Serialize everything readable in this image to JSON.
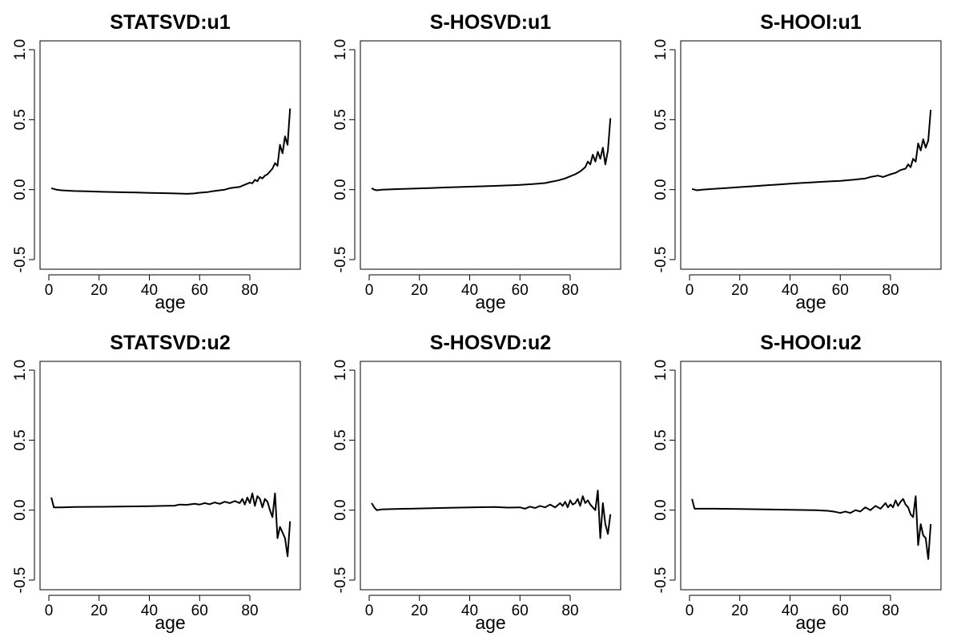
{
  "figure": {
    "background": "#ffffff",
    "line_color": "#000000"
  },
  "chart_data": [
    {
      "type": "line",
      "title": "STATSVD:u1",
      "xlabel": "age",
      "ylabel": "",
      "xlim": [
        0,
        96
      ],
      "ylim": [
        -0.5,
        1.0
      ],
      "xticks": [
        0,
        20,
        40,
        60,
        80
      ],
      "yticks": [
        -0.5,
        0.0,
        0.5,
        1.0
      ],
      "ytick_labels": [
        "-0.5",
        "0.0",
        "0.5",
        "1.0"
      ],
      "x": [
        1,
        3,
        5,
        10,
        15,
        20,
        25,
        30,
        35,
        40,
        45,
        50,
        55,
        58,
        60,
        63,
        65,
        68,
        70,
        72,
        74,
        76,
        78,
        80,
        81,
        82,
        83,
        84,
        85,
        86,
        87,
        88,
        89,
        90,
        91,
        92,
        93,
        94,
        95,
        96
      ],
      "y": [
        0.01,
        0.0,
        -0.005,
        -0.01,
        -0.012,
        -0.015,
        -0.017,
        -0.019,
        -0.021,
        -0.023,
        -0.025,
        -0.027,
        -0.03,
        -0.027,
        -0.022,
        -0.018,
        -0.012,
        -0.005,
        0.0,
        0.01,
        0.015,
        0.02,
        0.035,
        0.05,
        0.045,
        0.07,
        0.06,
        0.09,
        0.08,
        0.1,
        0.11,
        0.13,
        0.15,
        0.19,
        0.17,
        0.32,
        0.26,
        0.38,
        0.32,
        0.58
      ]
    },
    {
      "type": "line",
      "title": "S-HOSVD:u1",
      "xlabel": "age",
      "ylabel": "",
      "xlim": [
        0,
        96
      ],
      "ylim": [
        -0.5,
        1.0
      ],
      "xticks": [
        0,
        20,
        40,
        60,
        80
      ],
      "yticks": [
        -0.5,
        0.0,
        0.5,
        1.0
      ],
      "ytick_labels": [
        "-0.5",
        "0.0",
        "0.5",
        "1.0"
      ],
      "x": [
        1,
        2,
        3,
        5,
        10,
        15,
        20,
        25,
        30,
        35,
        40,
        45,
        50,
        55,
        60,
        65,
        70,
        72,
        75,
        78,
        80,
        82,
        84,
        86,
        87,
        88,
        89,
        90,
        91,
        92,
        93,
        94,
        95,
        96
      ],
      "y": [
        0.01,
        0.0,
        -0.005,
        0.0,
        0.003,
        0.006,
        0.009,
        0.012,
        0.015,
        0.018,
        0.021,
        0.024,
        0.027,
        0.03,
        0.034,
        0.04,
        0.047,
        0.055,
        0.065,
        0.08,
        0.095,
        0.11,
        0.13,
        0.16,
        0.2,
        0.18,
        0.25,
        0.2,
        0.27,
        0.22,
        0.3,
        0.18,
        0.28,
        0.51
      ]
    },
    {
      "type": "line",
      "title": "S-HOOI:u1",
      "xlabel": "age",
      "ylabel": "",
      "xlim": [
        0,
        96
      ],
      "ylim": [
        -0.5,
        1.0
      ],
      "xticks": [
        0,
        20,
        40,
        60,
        80
      ],
      "yticks": [
        -0.5,
        0.0,
        0.5,
        1.0
      ],
      "ytick_labels": [
        "-0.5",
        "0.0",
        "0.5",
        "1.0"
      ],
      "x": [
        1,
        2,
        3,
        5,
        10,
        15,
        20,
        25,
        30,
        35,
        40,
        45,
        50,
        55,
        60,
        65,
        70,
        72,
        75,
        77,
        80,
        82,
        84,
        86,
        87,
        88,
        89,
        90,
        91,
        92,
        93,
        94,
        95,
        96
      ],
      "y": [
        0.005,
        0.0,
        -0.005,
        0.0,
        0.006,
        0.012,
        0.018,
        0.024,
        0.03,
        0.036,
        0.042,
        0.048,
        0.053,
        0.058,
        0.063,
        0.07,
        0.08,
        0.09,
        0.1,
        0.09,
        0.11,
        0.12,
        0.14,
        0.15,
        0.18,
        0.16,
        0.22,
        0.2,
        0.33,
        0.28,
        0.36,
        0.3,
        0.35,
        0.57
      ]
    },
    {
      "type": "line",
      "title": "STATSVD:u2",
      "xlabel": "age",
      "ylabel": "",
      "xlim": [
        0,
        96
      ],
      "ylim": [
        -0.5,
        1.0
      ],
      "xticks": [
        0,
        20,
        40,
        60,
        80
      ],
      "yticks": [
        -0.5,
        0.0,
        0.5,
        1.0
      ],
      "ytick_labels": [
        "-0.5",
        "0.0",
        "0.5",
        "1.0"
      ],
      "x": [
        1,
        2,
        5,
        10,
        20,
        30,
        40,
        45,
        50,
        52,
        55,
        58,
        60,
        62,
        64,
        66,
        68,
        70,
        72,
        74,
        76,
        77,
        78,
        79,
        80,
        81,
        82,
        83,
        84,
        85,
        86,
        87,
        88,
        89,
        90,
        91,
        92,
        93,
        94,
        95,
        96
      ],
      "y": [
        0.09,
        0.02,
        0.02,
        0.022,
        0.024,
        0.026,
        0.028,
        0.03,
        0.032,
        0.04,
        0.038,
        0.045,
        0.04,
        0.05,
        0.042,
        0.055,
        0.045,
        0.06,
        0.05,
        0.065,
        0.05,
        0.08,
        0.04,
        0.09,
        0.05,
        0.12,
        0.03,
        0.1,
        0.08,
        0.02,
        0.08,
        0.06,
        0.0,
        -0.05,
        0.12,
        -0.2,
        -0.12,
        -0.16,
        -0.2,
        -0.33,
        -0.08
      ]
    },
    {
      "type": "line",
      "title": "S-HOSVD:u2",
      "xlabel": "age",
      "ylabel": "",
      "xlim": [
        0,
        96
      ],
      "ylim": [
        -0.5,
        1.0
      ],
      "xticks": [
        0,
        20,
        40,
        60,
        80
      ],
      "yticks": [
        -0.5,
        0.0,
        0.5,
        1.0
      ],
      "ytick_labels": [
        "-0.5",
        "0.0",
        "0.5",
        "1.0"
      ],
      "x": [
        1,
        2,
        3,
        5,
        10,
        20,
        30,
        40,
        50,
        55,
        60,
        62,
        64,
        66,
        68,
        70,
        72,
        74,
        76,
        77,
        78,
        79,
        80,
        81,
        82,
        83,
        84,
        85,
        86,
        87,
        88,
        89,
        90,
        91,
        92,
        93,
        94,
        95,
        96
      ],
      "y": [
        0.05,
        0.02,
        0.0,
        0.005,
        0.008,
        0.012,
        0.016,
        0.02,
        0.022,
        0.018,
        0.02,
        0.01,
        0.025,
        0.015,
        0.03,
        0.02,
        0.04,
        0.02,
        0.05,
        0.03,
        0.06,
        0.02,
        0.07,
        0.04,
        0.05,
        0.08,
        0.03,
        0.1,
        0.05,
        0.07,
        0.04,
        0.02,
        0.0,
        0.14,
        -0.2,
        0.05,
        -0.1,
        -0.17,
        -0.03
      ]
    },
    {
      "type": "line",
      "title": "S-HOOI:u2",
      "xlabel": "age",
      "ylabel": "",
      "xlim": [
        0,
        96
      ],
      "ylim": [
        -0.5,
        1.0
      ],
      "xticks": [
        0,
        20,
        40,
        60,
        80
      ],
      "yticks": [
        -0.5,
        0.0,
        0.5,
        1.0
      ],
      "ytick_labels": [
        "-0.5",
        "0.0",
        "0.5",
        "1.0"
      ],
      "x": [
        1,
        2,
        5,
        10,
        20,
        30,
        40,
        50,
        55,
        58,
        60,
        62,
        64,
        66,
        68,
        70,
        72,
        74,
        76,
        78,
        79,
        80,
        81,
        82,
        83,
        84,
        85,
        86,
        87,
        88,
        89,
        90,
        91,
        92,
        93,
        94,
        95,
        96
      ],
      "y": [
        0.08,
        0.01,
        0.01,
        0.01,
        0.008,
        0.005,
        0.002,
        0.0,
        -0.005,
        -0.012,
        -0.02,
        -0.01,
        -0.02,
        0.0,
        -0.01,
        0.02,
        0.0,
        0.03,
        0.01,
        0.05,
        0.02,
        0.04,
        0.02,
        0.07,
        0.03,
        0.06,
        0.08,
        0.04,
        0.02,
        -0.03,
        -0.05,
        0.1,
        -0.25,
        -0.1,
        -0.18,
        -0.2,
        -0.35,
        -0.1
      ]
    }
  ]
}
